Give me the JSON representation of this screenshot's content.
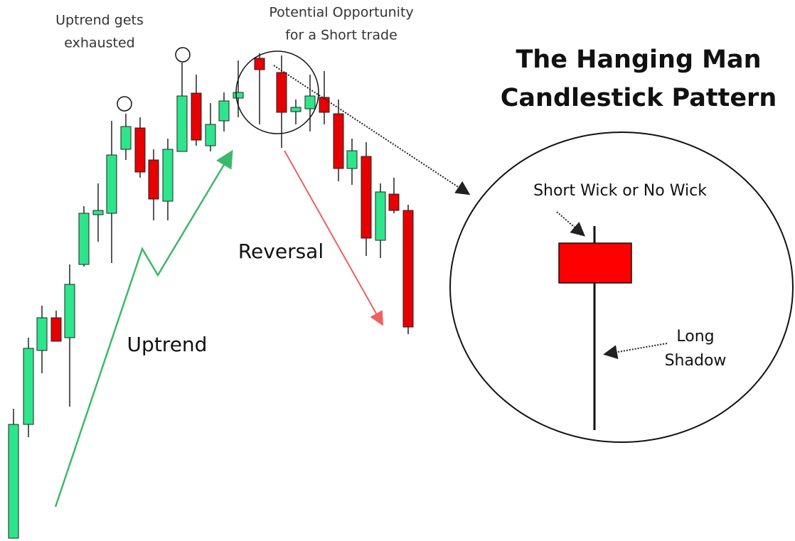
{
  "title": {
    "lines": [
      "The Hanging Man",
      "Candlestick Pattern"
    ]
  },
  "annotations": {
    "exhausted": [
      "Uptrend gets",
      "exhausted"
    ],
    "opportunity": [
      "Potential Opportunity",
      "for a Short trade"
    ],
    "reversal": "Reversal",
    "uptrend": "Uptrend",
    "short_wick": "Short Wick or No Wick",
    "long_shadow": [
      "Long",
      "Shadow"
    ]
  }
}
